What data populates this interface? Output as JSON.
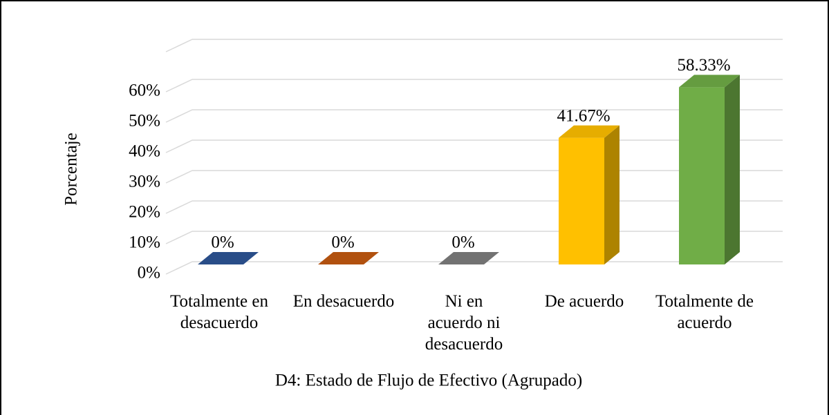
{
  "chart_data": {
    "type": "bar3d",
    "x_label": "D4: Estado de  Flujo de Efectivo (Agrupado)",
    "y_label": "Porcentaje",
    "categories": [
      "Totalmente en desacuerdo",
      "En desacuerdo",
      "Ni en acuerdo ni desacuerdo",
      "De acuerdo",
      "Totalmente de acuerdo"
    ],
    "values": [
      0,
      0,
      0,
      41.67,
      58.33
    ],
    "value_labels": [
      "0%",
      "0%",
      "0%",
      "41.67%",
      "58.33%"
    ],
    "colors": [
      "#2e5597",
      "#c55a11",
      "#7f7f7f",
      "#ffc000",
      "#70ad47"
    ],
    "ylim": [
      0,
      70
    ],
    "yticks": [
      {
        "value": 0,
        "label": "0%"
      },
      {
        "value": 10,
        "label": "10%"
      },
      {
        "value": 20,
        "label": "20%"
      },
      {
        "value": 30,
        "label": "30%"
      },
      {
        "value": 40,
        "label": "40%"
      },
      {
        "value": 50,
        "label": "50%"
      },
      {
        "value": 60,
        "label": "60%"
      }
    ],
    "grid": true
  }
}
